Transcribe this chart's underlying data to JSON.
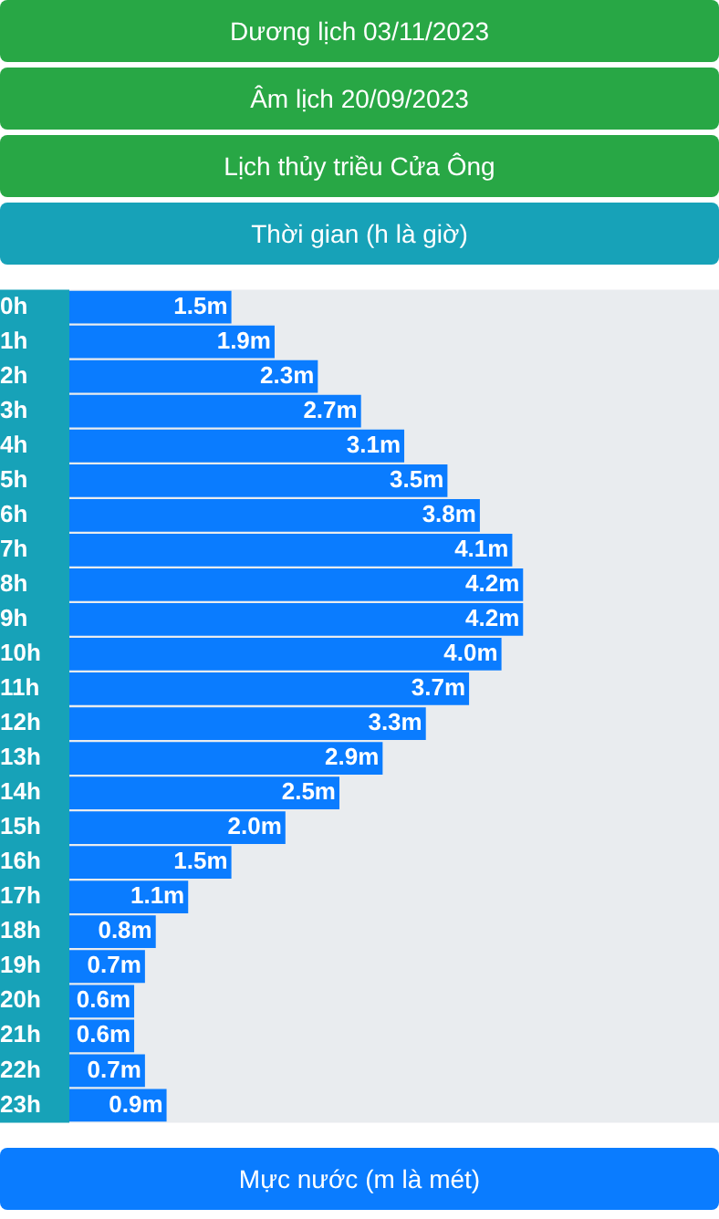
{
  "chart_data": {
    "type": "bar",
    "orientation": "horizontal",
    "annotations": [
      "Dương lịch 03/11/2023",
      "Âm lịch 20/09/2023"
    ],
    "title": "Lịch thủy triều Cửa Ông",
    "ylabel": "Thời gian (h là giờ)",
    "xlabel": "Mực nước (m là mét)",
    "categories": [
      "0h",
      "1h",
      "2h",
      "3h",
      "4h",
      "5h",
      "6h",
      "7h",
      "8h",
      "9h",
      "10h",
      "11h",
      "12h",
      "13h",
      "14h",
      "15h",
      "16h",
      "17h",
      "18h",
      "19h",
      "20h",
      "21h",
      "22h",
      "23h"
    ],
    "values": [
      1.5,
      1.9,
      2.3,
      2.7,
      3.1,
      3.5,
      3.8,
      4.1,
      4.2,
      4.2,
      4.0,
      3.7,
      3.3,
      2.9,
      2.5,
      2.0,
      1.5,
      1.1,
      0.8,
      0.7,
      0.6,
      0.6,
      0.7,
      0.9
    ],
    "value_labels": [
      "1.5m",
      "1.9m",
      "2.3m",
      "2.7m",
      "3.1m",
      "3.5m",
      "3.8m",
      "4.1m",
      "4.2m",
      "4.2m",
      "4.0m",
      "3.7m",
      "3.3m",
      "2.9m",
      "2.5m",
      "2.0m",
      "1.5m",
      "1.1m",
      "0.8m",
      "0.7m",
      "0.6m",
      "0.6m",
      "0.7m",
      "0.9m"
    ],
    "color": "#0a7cff",
    "grid": false,
    "legend": false
  }
}
